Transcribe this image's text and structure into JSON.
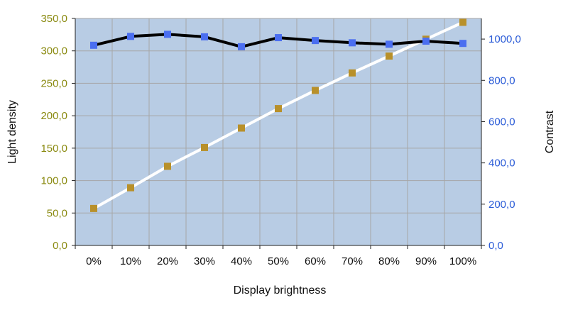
{
  "chart_data": {
    "type": "line",
    "title": "",
    "xlabel": "Display brightness",
    "ylabel_left": "Light density",
    "ylabel_right": "Contrast",
    "categories": [
      "0%",
      "10%",
      "20%",
      "30%",
      "40%",
      "50%",
      "60%",
      "70%",
      "80%",
      "90%",
      "100%"
    ],
    "y_left": {
      "lim": [
        0,
        350
      ],
      "ticks": [
        0,
        50,
        100,
        150,
        200,
        250,
        300,
        350
      ],
      "tick_labels": [
        "0,0",
        "50,0",
        "100,0",
        "150,0",
        "200,0",
        "250,0",
        "300,0",
        "350,0"
      ]
    },
    "y_right": {
      "lim": [
        0,
        1100
      ],
      "ticks": [
        0,
        200,
        400,
        600,
        800,
        1000
      ],
      "tick_labels": [
        "0,0",
        "200,0",
        "400,0",
        "600,0",
        "800,0",
        "1000,0"
      ]
    },
    "grid": true,
    "series": [
      {
        "axis": "left",
        "line_color": "#ffffff",
        "marker_color": "#b8902a",
        "values": [
          57,
          89,
          122,
          151,
          181,
          211,
          239,
          266,
          292,
          318,
          344
        ]
      },
      {
        "axis": "right",
        "line_color": "#000000",
        "marker_color": "#4a6ef0",
        "values": [
          970,
          1013,
          1023,
          1011,
          963,
          1007,
          993,
          982,
          975,
          990,
          979
        ]
      }
    ],
    "colors": {
      "plot_background": "#b8cce4",
      "grid": "#a6a6a6",
      "left_tick_text": "#8a8a10",
      "right_tick_text": "#2a5bd7"
    }
  }
}
